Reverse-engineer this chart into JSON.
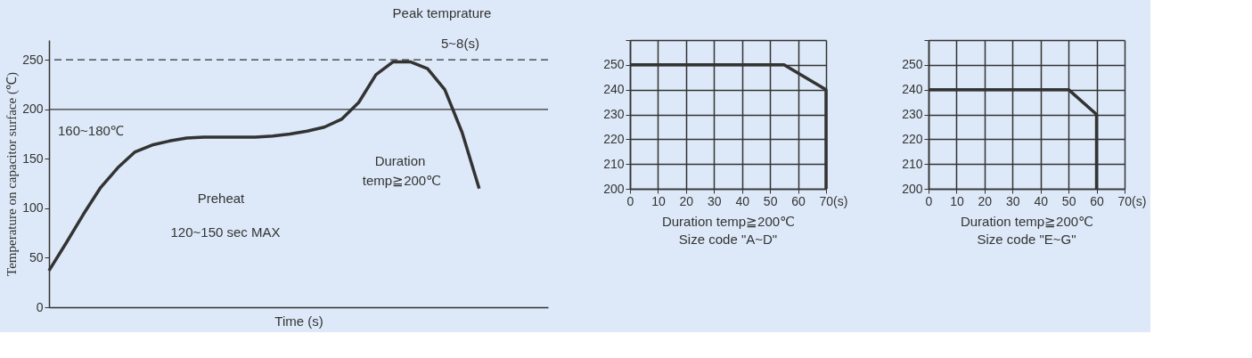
{
  "chart_data": [
    {
      "type": "line",
      "xlabel": "Time (s)",
      "ylabel": "Temperature on capacitor surface (℃)",
      "categories": [
        null,
        null,
        null,
        null,
        null,
        null,
        null,
        null,
        null,
        null,
        null,
        null,
        null,
        null,
        null,
        null,
        null,
        null,
        null,
        null,
        null,
        null,
        null,
        null,
        null,
        null,
        null,
        null,
        null,
        null
      ],
      "series": [
        {
          "color": "#333333",
          "values": [
            37,
            65,
            94,
            121,
            141,
            157,
            164,
            168,
            171,
            172,
            172,
            172,
            172,
            173,
            175,
            178,
            182,
            190,
            207,
            235,
            248,
            248,
            241,
            220,
            177,
            120,
            null,
            null,
            null,
            null
          ]
        }
      ],
      "ylim": [
        0,
        270
      ],
      "yticks": [
        0,
        50,
        100,
        150,
        200,
        250
      ],
      "tick_labels": "y",
      "grid": false,
      "ref_lines": [
        {
          "axis": "y",
          "value": 250,
          "line_style": "dashed",
          "color": "#333333"
        },
        {
          "axis": "y",
          "value": 200,
          "line_style": "solid",
          "color": "#333333"
        }
      ],
      "annotations": [
        "Peak temprature",
        "5~8(s)",
        "160~180℃",
        "Preheat",
        "120~150 sec  MAX",
        "Duration",
        "temp≧200℃"
      ]
    },
    {
      "type": "line",
      "title": "Size code \"A~D\"",
      "xlabel": "Duration  temp≧200℃",
      "series": [
        {
          "color": "#333333",
          "x": [
            0,
            55,
            70,
            70
          ],
          "values": [
            250,
            250,
            240,
            200
          ]
        }
      ],
      "xlim": [
        0,
        70
      ],
      "xticks": [
        0,
        10,
        20,
        30,
        40,
        50,
        60,
        {
          "value": 70,
          "label": "70(s)"
        }
      ],
      "ylim": [
        200,
        260
      ],
      "yticks": [
        200,
        210,
        220,
        230,
        240,
        250,
        {
          "value": 260,
          "label": null
        }
      ],
      "grid": true
    },
    {
      "type": "line",
      "title": "Size code \"E~G\"",
      "xlabel": "Duration  temp≧200℃",
      "series": [
        {
          "color": "#333333",
          "x": [
            0,
            50,
            60,
            60
          ],
          "values": [
            240,
            240,
            230,
            200
          ]
        }
      ],
      "xlim": [
        0,
        70
      ],
      "xticks": [
        0,
        10,
        20,
        30,
        40,
        50,
        60,
        {
          "value": 70,
          "label": "70(s)"
        }
      ],
      "ylim": [
        200,
        260
      ],
      "yticks": [
        200,
        210,
        220,
        230,
        240,
        250,
        {
          "value": 260,
          "label": null
        }
      ],
      "grid": true
    }
  ]
}
